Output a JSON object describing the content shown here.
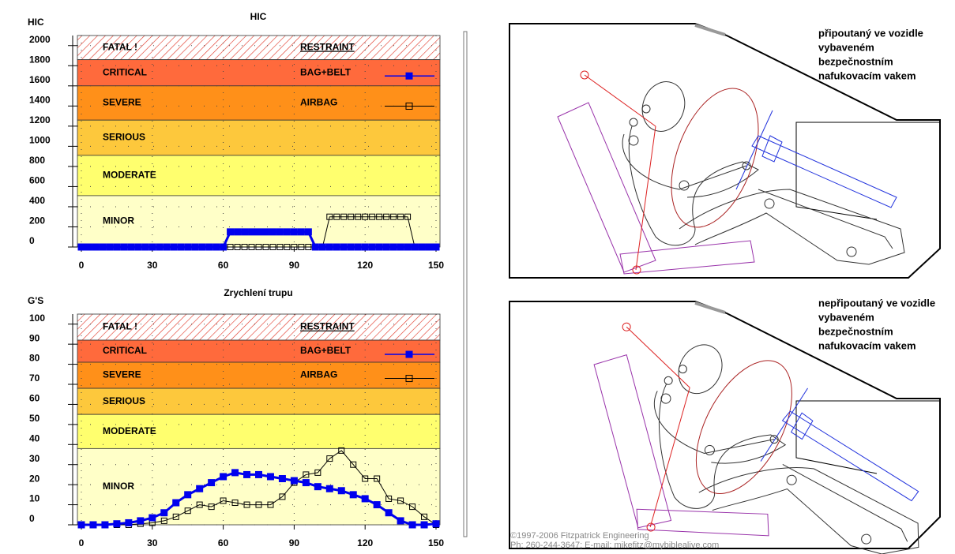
{
  "chart_data": [
    {
      "type": "line",
      "title": "HIC",
      "y_label": "HIC",
      "x": [
        0,
        3,
        6,
        9,
        12,
        15,
        18,
        21,
        24,
        27,
        30,
        33,
        36,
        39,
        42,
        45,
        48,
        51,
        54,
        57,
        60,
        63,
        66,
        69,
        72,
        75,
        78,
        81,
        84,
        87,
        90,
        93,
        96,
        99,
        102,
        105,
        108,
        111,
        114,
        117,
        120,
        123,
        126,
        129,
        132,
        135,
        138,
        141,
        144,
        147,
        150
      ],
      "xlim": [
        0,
        150
      ],
      "xticks": [
        0,
        30,
        60,
        90,
        120,
        150
      ],
      "ylim": [
        0,
        2100
      ],
      "yticks": [
        0,
        200,
        400,
        600,
        800,
        1000,
        1200,
        1400,
        1600,
        1800,
        2000
      ],
      "grid": true,
      "bands": [
        {
          "name": "FATAL !",
          "from": 1860,
          "to": 2100,
          "color": "#ffffff",
          "hatch": true
        },
        {
          "name": "CRITICAL",
          "from": 1600,
          "to": 1860,
          "color": "#ff6a3c"
        },
        {
          "name": "SEVERE",
          "from": 1260,
          "to": 1600,
          "color": "#ff9019"
        },
        {
          "name": "SERIOUS",
          "from": 910,
          "to": 1260,
          "color": "#fdc83c"
        },
        {
          "name": "MODERATE",
          "from": 510,
          "to": 910,
          "color": "#ffff6e"
        },
        {
          "name": "MINOR",
          "from": 0,
          "to": 510,
          "color": "#ffffc8"
        }
      ],
      "legend_title": "RESTRAINT",
      "series": [
        {
          "name": "BAG+BELT",
          "color": "#0000ee",
          "marker": "filled",
          "values": [
            0,
            0,
            0,
            0,
            0,
            0,
            0,
            0,
            0,
            0,
            0,
            0,
            0,
            0,
            0,
            0,
            0,
            0,
            0,
            0,
            0,
            150,
            150,
            150,
            150,
            150,
            150,
            150,
            150,
            150,
            150,
            150,
            150,
            0,
            0,
            0,
            0,
            0,
            0,
            0,
            0,
            0,
            0,
            0,
            0,
            0,
            0,
            0,
            0,
            0,
            0
          ]
        },
        {
          "name": "AIRBAG",
          "color": "#000000",
          "marker": "open",
          "values": [
            0,
            0,
            0,
            0,
            0,
            0,
            0,
            0,
            0,
            0,
            0,
            0,
            0,
            0,
            0,
            0,
            0,
            0,
            0,
            0,
            0,
            0,
            0,
            0,
            0,
            0,
            0,
            0,
            0,
            0,
            0,
            0,
            0,
            0,
            0,
            300,
            300,
            300,
            300,
            300,
            300,
            300,
            300,
            300,
            300,
            300,
            300,
            0,
            0,
            0,
            0
          ]
        }
      ]
    },
    {
      "type": "line",
      "title": "Zrychlení trupu",
      "y_label": "G'S",
      "x": [
        0,
        5,
        10,
        15,
        20,
        25,
        30,
        35,
        40,
        45,
        50,
        55,
        60,
        65,
        70,
        75,
        80,
        85,
        90,
        95,
        100,
        105,
        110,
        115,
        120,
        125,
        130,
        135,
        140,
        145,
        150
      ],
      "xlim": [
        0,
        150
      ],
      "xticks": [
        0,
        30,
        60,
        90,
        120,
        150
      ],
      "ylim": [
        0,
        105
      ],
      "yticks": [
        0,
        10,
        20,
        30,
        40,
        50,
        60,
        70,
        80,
        90,
        100
      ],
      "grid": true,
      "bands": [
        {
          "name": "FATAL !",
          "from": 92,
          "to": 105,
          "color": "#ffffff",
          "hatch": true
        },
        {
          "name": "CRITICAL",
          "from": 81,
          "to": 92,
          "color": "#ff6a3c"
        },
        {
          "name": "SEVERE",
          "from": 68,
          "to": 81,
          "color": "#ff9019"
        },
        {
          "name": "SERIOUS",
          "from": 55,
          "to": 68,
          "color": "#fdc83c"
        },
        {
          "name": "MODERATE",
          "from": 38,
          "to": 55,
          "color": "#ffff6e"
        },
        {
          "name": "MINOR",
          "from": 0,
          "to": 38,
          "color": "#ffffc8"
        }
      ],
      "legend_title": "RESTRAINT",
      "series": [
        {
          "name": "BAG+BELT",
          "color": "#0000ee",
          "marker": "filled",
          "values": [
            0,
            0,
            0,
            0.5,
            1,
            2,
            3.5,
            6,
            11,
            15,
            18,
            21,
            24,
            26,
            25,
            25,
            24,
            23,
            22,
            21,
            19,
            18,
            17,
            15,
            13,
            10,
            6,
            2,
            0,
            0,
            0.5
          ]
        },
        {
          "name": "AIRBAG",
          "color": "#000000",
          "marker": "open",
          "values": [
            0,
            0,
            0,
            0,
            0,
            0.5,
            1,
            2,
            4,
            7,
            10,
            9,
            12,
            11,
            10,
            10,
            10,
            14,
            21,
            25,
            26,
            33,
            37,
            30,
            23,
            23,
            13,
            12,
            9,
            4,
            0
          ]
        }
      ]
    }
  ],
  "panels": [
    {
      "caption": [
        "připoutaný ve vozidle",
        "vybaveném",
        "bezpečnostním",
        "nafukovacím vakem"
      ]
    },
    {
      "caption": [
        "nepřipoutaný ve vozidle",
        "vybaveném",
        "bezpečnostním",
        "nafukovacím vakem"
      ]
    }
  ],
  "copyright": [
    "©1997-2006 Fitzpatrick Engineering",
    "Ph: 260-244-3647; E-mail: mikefitz@mybiblealive.com"
  ]
}
